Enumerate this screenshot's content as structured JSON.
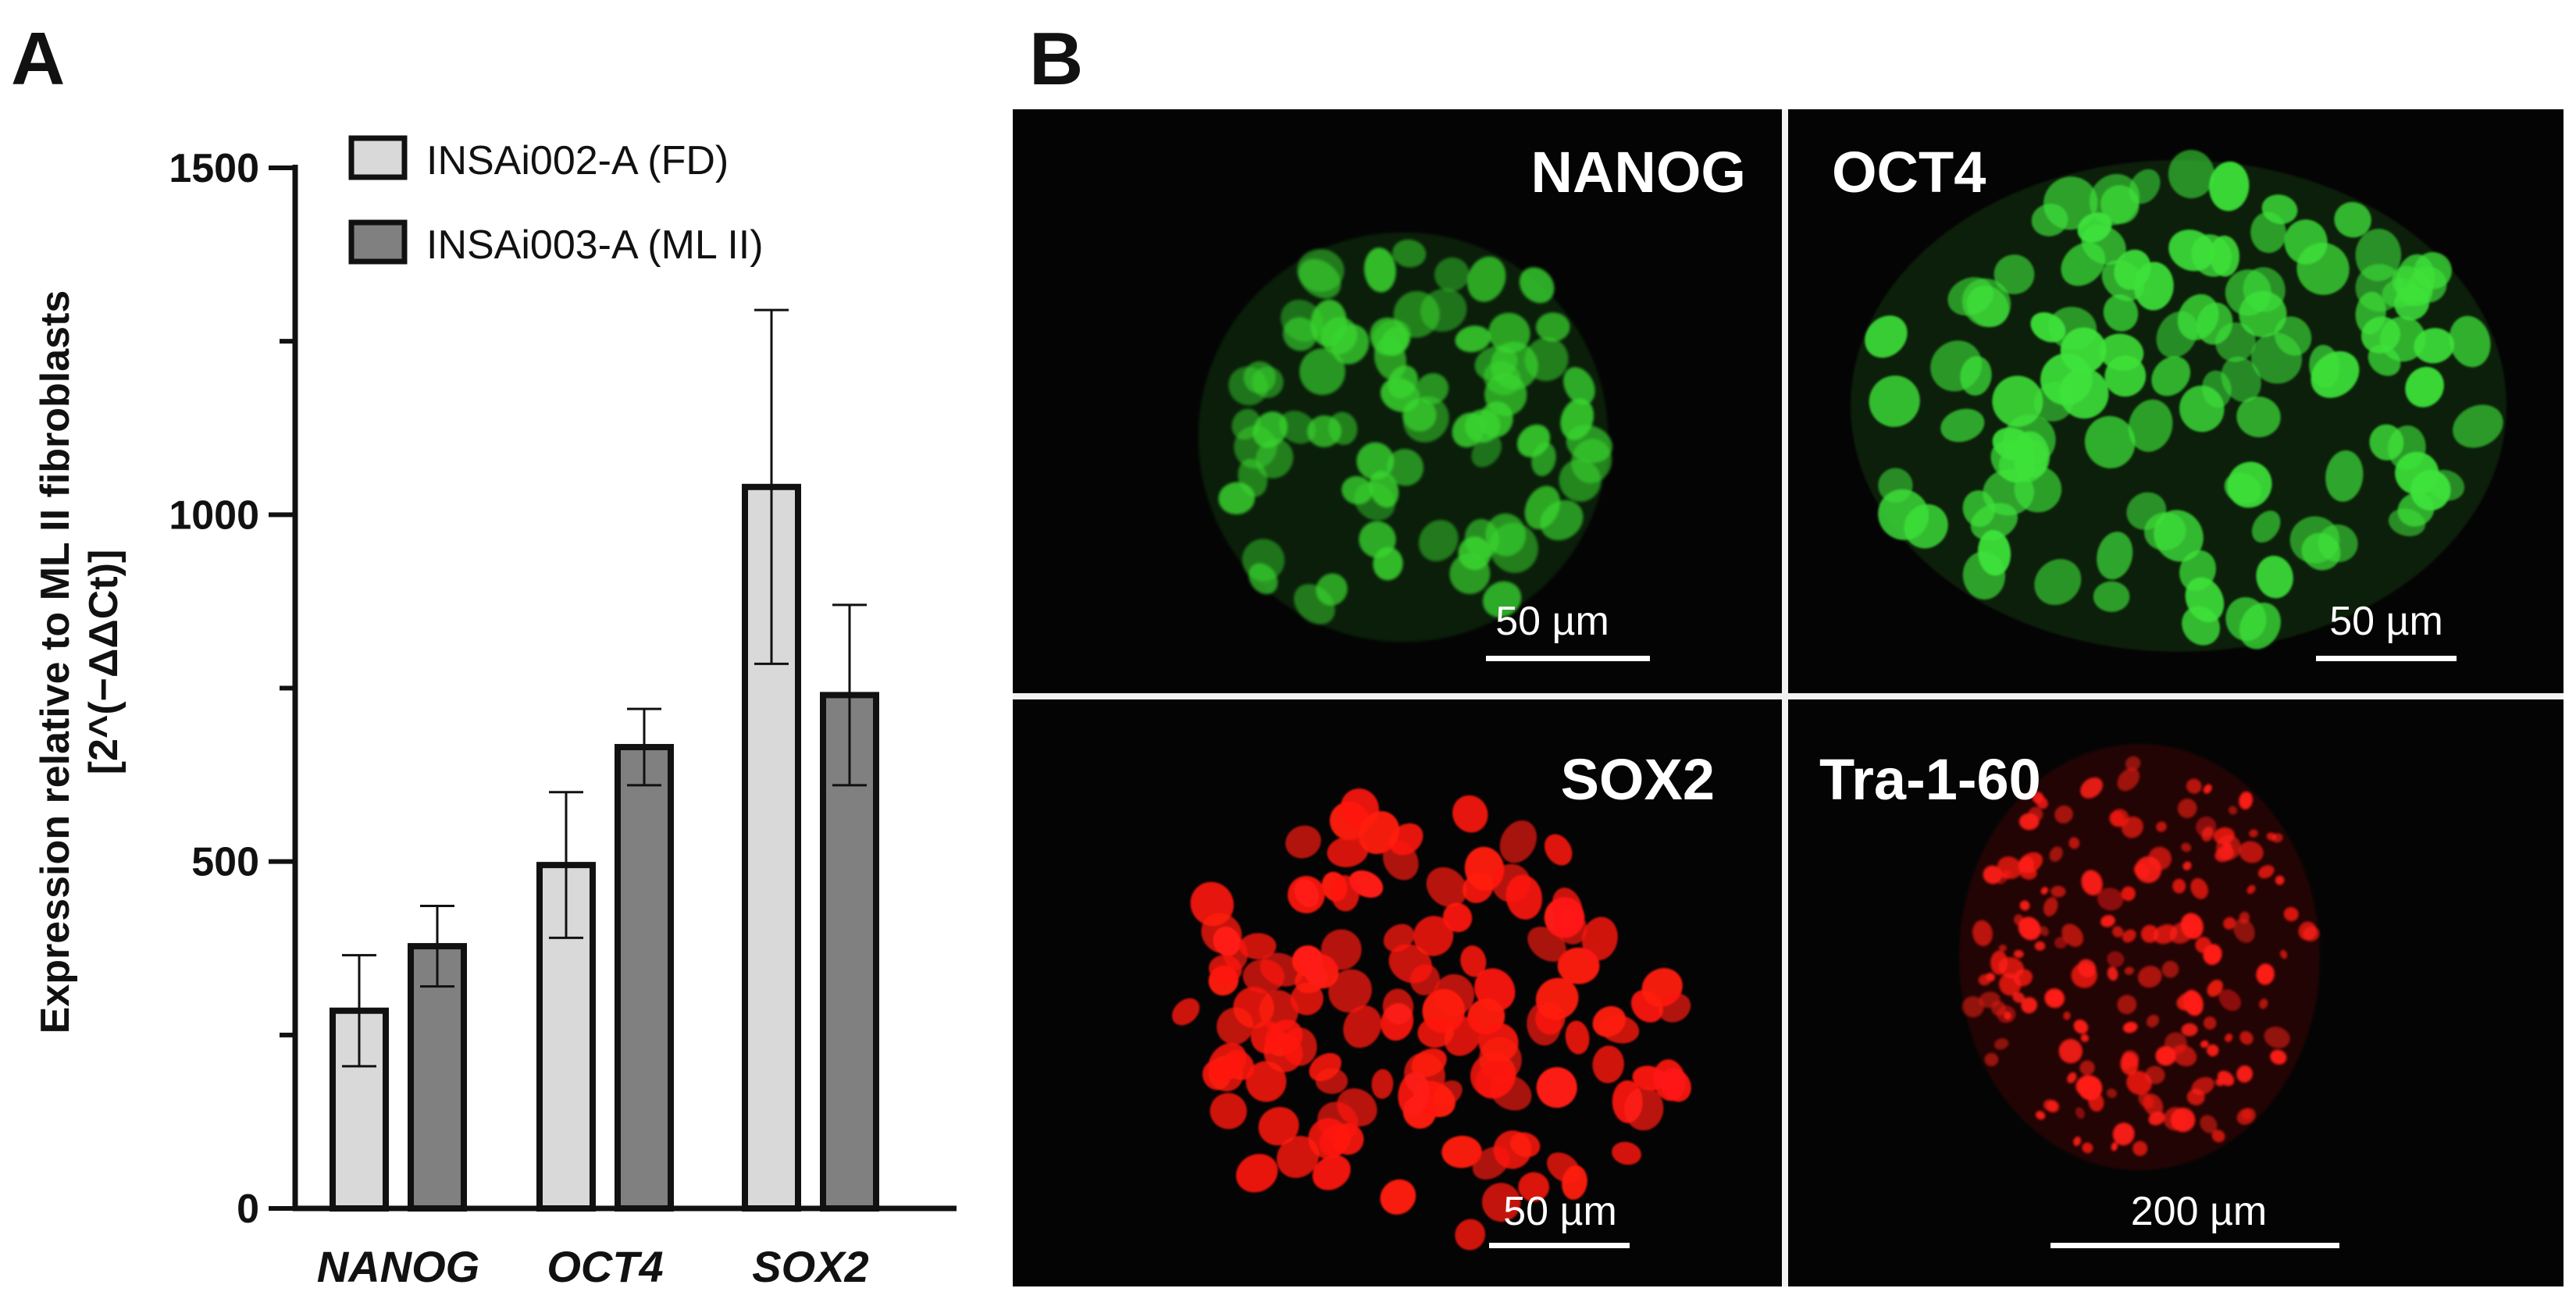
{
  "panels": {
    "a_label": "A",
    "b_label": "B"
  },
  "chart_data": {
    "type": "bar",
    "title": "",
    "xlabel": "",
    "ylabel_line1": "Expression relative to ML II fibroblasts",
    "ylabel_line2": "[2^(−ΔΔCt)]",
    "categories": [
      "NANOG",
      "OCT4",
      "SOX2"
    ],
    "yticks": [
      "0",
      "500",
      "1000",
      "1500"
    ],
    "ylim": [
      0,
      1500
    ],
    "series": [
      {
        "name": "INSAi002-A (FD)",
        "color": "#d9d9d9",
        "values": [
          285,
          495,
          1040
        ],
        "errors": [
          80,
          105,
          255
        ]
      },
      {
        "name": "INSAi003-A (ML II)",
        "color": "#808080",
        "values": [
          378,
          665,
          740
        ],
        "errors": [
          58,
          55,
          130
        ]
      }
    ],
    "legend_position": "top"
  },
  "micrographs": {
    "nanog": {
      "label": "NANOG",
      "scale": "50 µm",
      "color": "#39d62f"
    },
    "oct4": {
      "label": "OCT4",
      "scale": "50 µm",
      "color": "#3ee23a"
    },
    "sox2": {
      "label": "SOX2",
      "scale": "50 µm",
      "color": "#ff1a12"
    },
    "tra": {
      "label": "Tra-1-60",
      "scale": "200 µm",
      "color": "#ff1c14"
    }
  }
}
